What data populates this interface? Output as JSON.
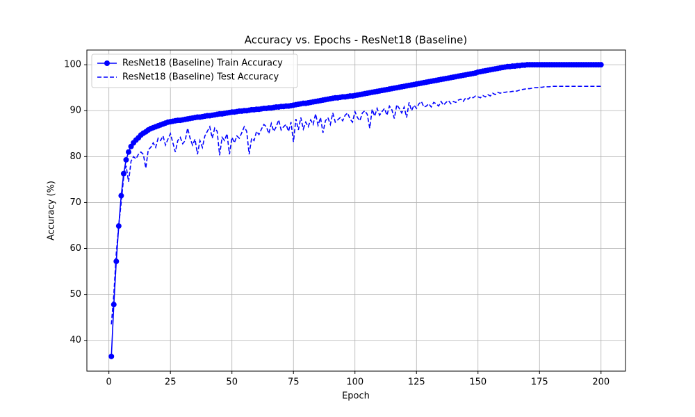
{
  "chart_data": {
    "type": "line",
    "title": "Accuracy vs. Epochs - ResNet18 (Baseline)",
    "xlabel": "Epoch",
    "ylabel": "Accuracy (%)",
    "x": [
      1,
      2,
      3,
      4,
      5,
      6,
      7,
      8,
      9,
      10,
      11,
      12,
      13,
      14,
      15,
      16,
      17,
      18,
      19,
      20,
      21,
      22,
      23,
      24,
      25,
      26,
      27,
      28,
      29,
      30,
      31,
      32,
      33,
      34,
      35,
      36,
      37,
      38,
      39,
      40,
      41,
      42,
      43,
      44,
      45,
      46,
      47,
      48,
      49,
      50,
      51,
      52,
      53,
      54,
      55,
      56,
      57,
      58,
      59,
      60,
      61,
      62,
      63,
      64,
      65,
      66,
      67,
      68,
      69,
      70,
      71,
      72,
      73,
      74,
      75,
      76,
      77,
      78,
      79,
      80,
      81,
      82,
      83,
      84,
      85,
      86,
      87,
      88,
      89,
      90,
      91,
      92,
      93,
      94,
      95,
      96,
      97,
      98,
      99,
      100,
      101,
      102,
      103,
      104,
      105,
      106,
      107,
      108,
      109,
      110,
      111,
      112,
      113,
      114,
      115,
      116,
      117,
      118,
      119,
      120,
      121,
      122,
      123,
      124,
      125,
      126,
      127,
      128,
      129,
      130,
      131,
      132,
      133,
      134,
      135,
      136,
      137,
      138,
      139,
      140,
      141,
      142,
      143,
      144,
      145,
      146,
      147,
      148,
      149,
      150,
      151,
      152,
      153,
      154,
      155,
      156,
      157,
      158,
      159,
      160,
      161,
      162,
      163,
      164,
      165,
      166,
      167,
      168,
      169,
      170,
      171,
      172,
      173,
      174,
      175,
      176,
      177,
      178,
      179,
      180,
      181,
      182,
      183,
      184,
      185,
      186,
      187,
      188,
      189,
      190,
      191,
      192,
      193,
      194,
      195,
      196,
      197,
      198,
      199,
      200
    ],
    "series": [
      {
        "name": "ResNet18 (Baseline) Train Accuracy",
        "color": "#0000ff",
        "dashed": false,
        "marker": true,
        "values": [
          36.5,
          47.8,
          57.2,
          64.9,
          71.5,
          76.3,
          79.3,
          81.0,
          82.2,
          83.0,
          83.6,
          84.1,
          84.7,
          85.1,
          85.4,
          85.8,
          86.1,
          86.3,
          86.5,
          86.7,
          86.9,
          87.1,
          87.3,
          87.5,
          87.6,
          87.7,
          87.8,
          87.9,
          87.9,
          88.0,
          88.1,
          88.2,
          88.3,
          88.4,
          88.5,
          88.6,
          88.6,
          88.7,
          88.8,
          88.9,
          88.9,
          89.0,
          89.1,
          89.2,
          89.3,
          89.3,
          89.4,
          89.5,
          89.6,
          89.7,
          89.7,
          89.8,
          89.9,
          89.9,
          90.0,
          90.0,
          90.1,
          90.2,
          90.2,
          90.3,
          90.3,
          90.4,
          90.5,
          90.5,
          90.6,
          90.6,
          90.7,
          90.8,
          90.8,
          90.9,
          90.9,
          91.0,
          91.0,
          91.1,
          91.2,
          91.3,
          91.4,
          91.5,
          91.6,
          91.6,
          91.7,
          91.8,
          91.9,
          92.0,
          92.1,
          92.2,
          92.3,
          92.4,
          92.5,
          92.6,
          92.7,
          92.8,
          92.8,
          92.9,
          93.0,
          93.0,
          93.1,
          93.2,
          93.2,
          93.3,
          93.4,
          93.5,
          93.6,
          93.7,
          93.8,
          93.9,
          94.0,
          94.1,
          94.2,
          94.3,
          94.4,
          94.5,
          94.6,
          94.7,
          94.8,
          94.9,
          95.0,
          95.1,
          95.2,
          95.3,
          95.4,
          95.5,
          95.6,
          95.7,
          95.8,
          95.9,
          96.0,
          96.1,
          96.2,
          96.3,
          96.4,
          96.5,
          96.6,
          96.7,
          96.8,
          96.9,
          97.0,
          97.1,
          97.2,
          97.3,
          97.4,
          97.5,
          97.6,
          97.7,
          97.8,
          97.9,
          98.0,
          98.1,
          98.2,
          98.4,
          98.5,
          98.6,
          98.7,
          98.8,
          98.9,
          99.0,
          99.1,
          99.2,
          99.3,
          99.4,
          99.5,
          99.6,
          99.6,
          99.7,
          99.7,
          99.8,
          99.8,
          99.9,
          99.9,
          100,
          100,
          100,
          100,
          100,
          100,
          100,
          100,
          100,
          100,
          100,
          100,
          100,
          100,
          100,
          100,
          100,
          100,
          100,
          100,
          100,
          100,
          100,
          100,
          100,
          100,
          100,
          100,
          100,
          100,
          100
        ]
      },
      {
        "name": "ResNet18 (Baseline) Test Accuracy",
        "color": "#0000ff",
        "dashed": true,
        "marker": false,
        "values": [
          43.5,
          50.0,
          59.0,
          65.0,
          70.0,
          75.5,
          78.0,
          74.5,
          79.0,
          80.0,
          79.5,
          80.5,
          81.0,
          80.5,
          77.5,
          81.5,
          82.0,
          83.0,
          82.0,
          84.0,
          83.5,
          84.5,
          82.5,
          83.8,
          85.0,
          83.0,
          81.0,
          83.5,
          84.2,
          82.8,
          83.5,
          86.2,
          84.0,
          82.5,
          83.8,
          80.5,
          83.5,
          82.0,
          84.5,
          85.5,
          86.5,
          84.0,
          86.2,
          85.5,
          80.3,
          84.2,
          83.5,
          85.0,
          80.5,
          84.2,
          83.0,
          84.5,
          84.0,
          85.2,
          86.5,
          85.5,
          80.5,
          84.0,
          83.5,
          85.5,
          84.8,
          86.0,
          87.0,
          86.5,
          85.0,
          87.2,
          85.5,
          86.5,
          88.0,
          85.8,
          86.5,
          87.0,
          85.5,
          87.5,
          83.2,
          88.2,
          85.8,
          88.5,
          86.0,
          87.5,
          86.5,
          88.0,
          87.0,
          89.3,
          86.8,
          88.5,
          85.2,
          87.8,
          88.5,
          87.0,
          89.5,
          87.5,
          88.0,
          88.5,
          87.8,
          89.0,
          89.5,
          88.2,
          87.5,
          89.8,
          88.5,
          87.8,
          89.5,
          90.0,
          89.2,
          86.2,
          90.3,
          88.8,
          90.5,
          89.0,
          89.8,
          90.5,
          89.0,
          91.0,
          90.2,
          88.3,
          91.3,
          90.5,
          89.5,
          90.8,
          88.5,
          91.8,
          90.0,
          91.2,
          90.5,
          91.5,
          92.0,
          90.8,
          91.0,
          91.5,
          90.8,
          91.8,
          91.5,
          91.0,
          92.0,
          91.2,
          91.8,
          92.2,
          91.5,
          92.0,
          91.8,
          92.3,
          92.5,
          92.0,
          92.8,
          92.5,
          93.0,
          92.8,
          93.2,
          93.0,
          92.8,
          93.3,
          93.0,
          93.5,
          93.2,
          93.8,
          93.5,
          94.0,
          93.8,
          94.0,
          94.0,
          94.1,
          94.1,
          94.2,
          94.2,
          94.3,
          94.5,
          94.6,
          94.7,
          94.8,
          94.8,
          94.9,
          95.0,
          95.0,
          95.1,
          95.1,
          95.2,
          95.2,
          95.2,
          95.3,
          95.3,
          95.3,
          95.3,
          95.3,
          95.3,
          95.3,
          95.3,
          95.3,
          95.3,
          95.3,
          95.3,
          95.3,
          95.3,
          95.3,
          95.3,
          95.3,
          95.3,
          95.3,
          95.3,
          95.3
        ]
      }
    ],
    "xlim": [
      -8.95,
      209.95
    ],
    "ylim": [
      33.3,
      103.2
    ],
    "xticks": [
      0,
      25,
      50,
      75,
      100,
      125,
      150,
      175,
      200
    ],
    "yticks": [
      40,
      50,
      60,
      70,
      80,
      90,
      100
    ],
    "grid": true,
    "legend": "upper-left"
  }
}
